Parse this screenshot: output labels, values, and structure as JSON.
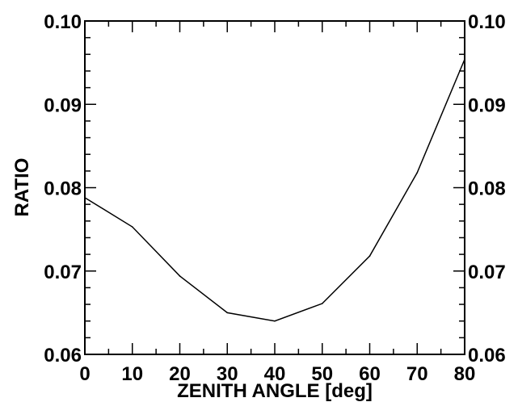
{
  "chart_data": {
    "type": "line",
    "title": "",
    "xlabel": "ZENITH ANGLE [deg]",
    "ylabel": "RATIO",
    "xlim": [
      0,
      80
    ],
    "ylim": [
      0.06,
      0.1
    ],
    "x_ticks": [
      0,
      10,
      20,
      30,
      40,
      50,
      60,
      70,
      80
    ],
    "x_tick_labels": [
      "0",
      "10",
      "20",
      "30",
      "40",
      "50",
      "60",
      "70",
      "80"
    ],
    "y_ticks": [
      0.06,
      0.07,
      0.08,
      0.09,
      0.1
    ],
    "y_tick_labels": [
      "0.06",
      "0.07",
      "0.08",
      "0.09",
      "0.10"
    ],
    "right_y_tick_labels": [
      "0.06",
      "0.07",
      "0.08",
      "0.09",
      "0.10"
    ],
    "grid": false,
    "series": [
      {
        "x": [
          0,
          10,
          20,
          30,
          40,
          50,
          60,
          70,
          80
        ],
        "y": [
          0.0788,
          0.0753,
          0.0694,
          0.065,
          0.064,
          0.0661,
          0.0718,
          0.0818,
          0.0954
        ]
      }
    ],
    "colors": {
      "line": "#000000",
      "axes": "#000000"
    }
  }
}
